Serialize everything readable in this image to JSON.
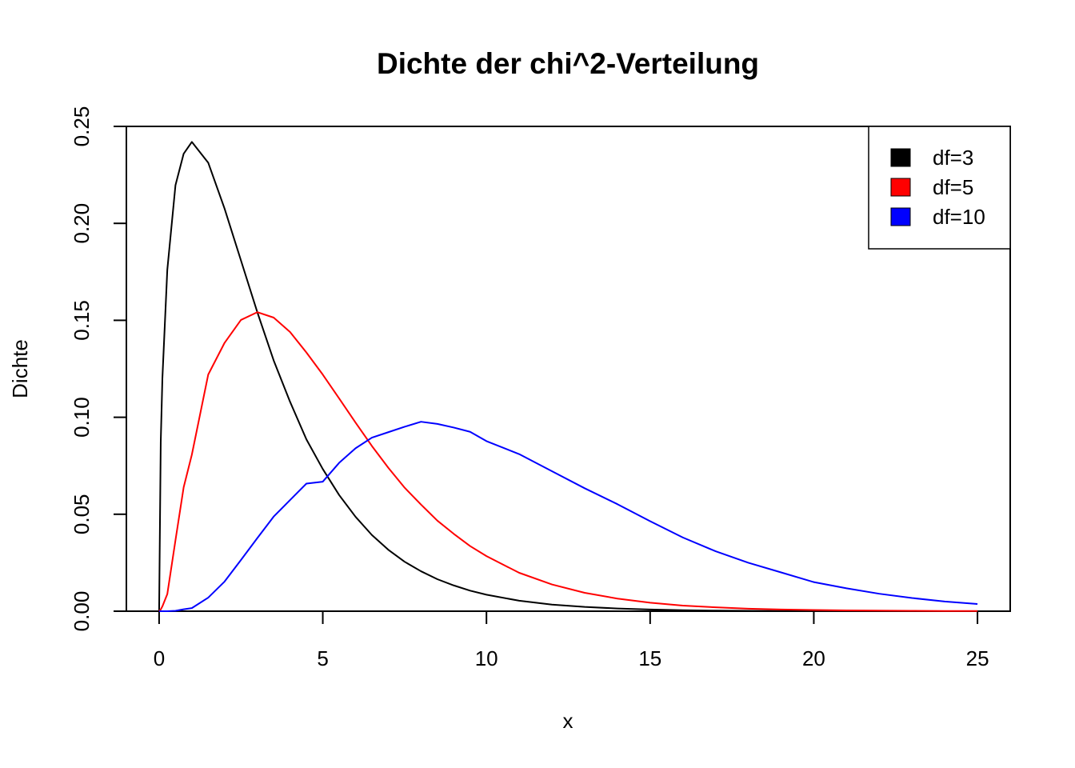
{
  "chart_data": {
    "type": "line",
    "title": "Dichte der chi^2-Verteilung",
    "xlabel": "x",
    "ylabel": "Dichte",
    "xlim": [
      -1,
      26
    ],
    "ylim": [
      0,
      0.25
    ],
    "x_ticks": [
      0,
      5,
      10,
      15,
      20,
      25
    ],
    "y_ticks": [
      0.0,
      0.05,
      0.1,
      0.15,
      0.2,
      0.25
    ],
    "x_tick_labels": [
      "0",
      "5",
      "10",
      "15",
      "20",
      "25"
    ],
    "y_tick_labels": [
      "0.00",
      "0.05",
      "0.10",
      "0.15",
      "0.20",
      "0.25"
    ],
    "grid": false,
    "legend_position": "top-right",
    "x": [
      0,
      0.05,
      0.1,
      0.25,
      0.5,
      0.75,
      1,
      1.5,
      2,
      2.5,
      3,
      3.5,
      4,
      4.5,
      5,
      5.5,
      6,
      6.5,
      7,
      7.5,
      8,
      8.5,
      9,
      9.5,
      10,
      11,
      12,
      13,
      14,
      15,
      16,
      17,
      18,
      19,
      20,
      21,
      22,
      23,
      24,
      25
    ],
    "series": [
      {
        "name": "df=3",
        "color": "#000000",
        "values": [
          0.0,
          0.0872,
          0.12,
          0.176,
          0.2197,
          0.2359,
          0.242,
          0.2313,
          0.2076,
          0.1809,
          0.1542,
          0.1293,
          0.108,
          0.0886,
          0.0733,
          0.0599,
          0.0487,
          0.0393,
          0.0317,
          0.0255,
          0.0206,
          0.0165,
          0.0133,
          0.0106,
          0.0085,
          0.0054,
          0.0034,
          0.0022,
          0.0014,
          0.0009,
          0.0005,
          0.0003,
          0.0002,
          0.0001,
          0.0001,
          0.0,
          0.0,
          0.0,
          0.0,
          0.0
        ]
      },
      {
        "name": "df=5",
        "color": "#ff0000",
        "values": [
          0.0,
          0.0009,
          0.0025,
          0.0088,
          0.0366,
          0.0639,
          0.0807,
          0.122,
          0.1384,
          0.1502,
          0.1542,
          0.1514,
          0.144,
          0.1334,
          0.122,
          0.1097,
          0.0973,
          0.0852,
          0.074,
          0.0637,
          0.055,
          0.0467,
          0.0399,
          0.0336,
          0.0284,
          0.0198,
          0.0138,
          0.0095,
          0.0065,
          0.0044,
          0.0029,
          0.002,
          0.0013,
          0.0009,
          0.0006,
          0.0004,
          0.0003,
          0.0002,
          0.0001,
          0.0001
        ]
      },
      {
        "name": "df=10",
        "color": "#0000ff",
        "values": [
          0.0,
          0.0,
          0.0,
          0.0,
          0.0002,
          0.001,
          0.0016,
          0.007,
          0.0153,
          0.0264,
          0.0377,
          0.0488,
          0.0573,
          0.0658,
          0.0668,
          0.0765,
          0.084,
          0.0895,
          0.0923,
          0.0951,
          0.0977,
          0.0966,
          0.0947,
          0.0925,
          0.0877,
          0.081,
          0.0722,
          0.0634,
          0.0552,
          0.0464,
          0.038,
          0.0309,
          0.025,
          0.02,
          0.015,
          0.0118,
          0.009,
          0.0068,
          0.005,
          0.0037
        ]
      }
    ]
  }
}
